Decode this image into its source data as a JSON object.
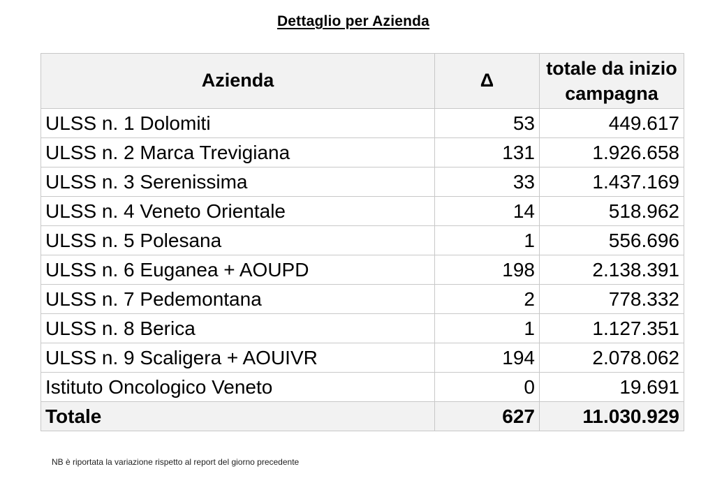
{
  "title": "Dettaglio per Azienda",
  "table": {
    "headers": {
      "azienda": "Azienda",
      "delta": "Δ",
      "totale": "totale da inizio campagna"
    },
    "rows": [
      {
        "azienda": "ULSS n. 1 Dolomiti",
        "delta": "53",
        "totale": "449.617"
      },
      {
        "azienda": "ULSS n. 2 Marca Trevigiana",
        "delta": "131",
        "totale": "1.926.658"
      },
      {
        "azienda": "ULSS n. 3 Serenissima",
        "delta": "33",
        "totale": "1.437.169"
      },
      {
        "azienda": "ULSS n. 4 Veneto Orientale",
        "delta": "14",
        "totale": "518.962"
      },
      {
        "azienda": "ULSS n. 5 Polesana",
        "delta": "1",
        "totale": "556.696"
      },
      {
        "azienda": "ULSS n. 6 Euganea + AOUPD",
        "delta": "198",
        "totale": "2.138.391"
      },
      {
        "azienda": "ULSS n. 7 Pedemontana",
        "delta": "2",
        "totale": "778.332"
      },
      {
        "azienda": "ULSS n. 8 Berica",
        "delta": "1",
        "totale": "1.127.351"
      },
      {
        "azienda": "ULSS n. 9 Scaligera + AOUIVR",
        "delta": "194",
        "totale": "2.078.062"
      },
      {
        "azienda": "Istituto Oncologico Veneto",
        "delta": "0",
        "totale": "19.691"
      }
    ],
    "total": {
      "azienda": "Totale",
      "delta": "627",
      "totale": "11.030.929"
    }
  },
  "note": "NB è riportata la variazione rispetto al report del giorno precedente"
}
